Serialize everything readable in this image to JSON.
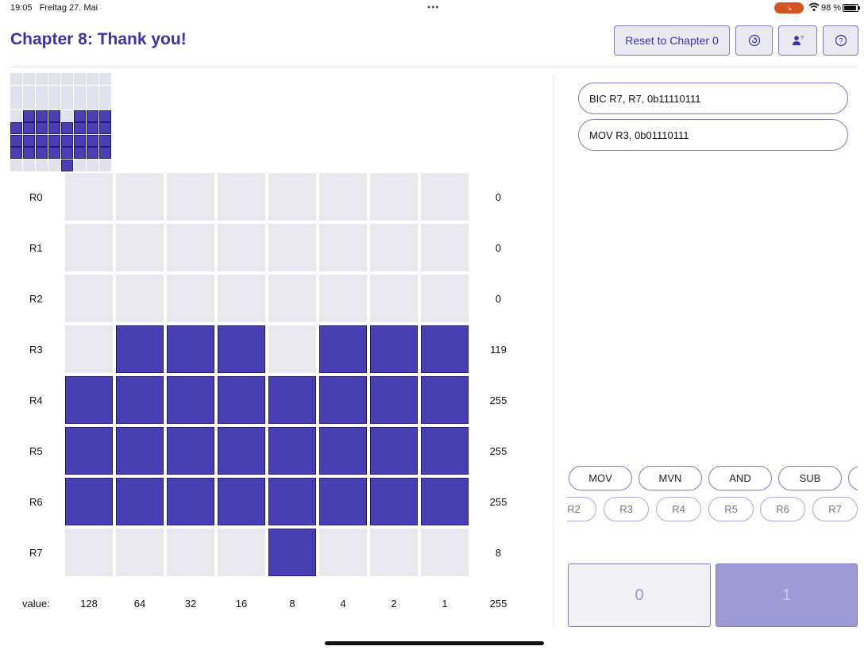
{
  "status_bar": {
    "time": "19:05",
    "date": "Freitag 27. Mai",
    "dots": "•••",
    "battery": "98 %",
    "swift_badge": "swift-icon"
  },
  "header": {
    "title": "Chapter 8: Thank you!",
    "reset_label": "Reset to Chapter 0",
    "icons": [
      "restart-icon",
      "person-question-icon",
      "help-icon"
    ]
  },
  "preview": {
    "rows": [
      0,
      0,
      0,
      119,
      255,
      255,
      255,
      8
    ],
    "colors": {
      "on": "#4840b2",
      "off": "#e2e2ee"
    }
  },
  "registers": {
    "labels": [
      "R0",
      "R1",
      "R2",
      "R3",
      "R4",
      "R5",
      "R6",
      "R7"
    ],
    "values": [
      "0",
      "0",
      "0",
      "119",
      "255",
      "255",
      "255",
      "8"
    ],
    "bits": [
      0,
      0,
      0,
      119,
      255,
      255,
      255,
      8
    ]
  },
  "weights": {
    "label": "value:",
    "items": [
      "128",
      "64",
      "32",
      "16",
      "8",
      "4",
      "2",
      "1"
    ],
    "total": "255"
  },
  "instructions": [
    "BIC R7, R7, 0b11110111",
    "MOV R3, 0b01110111"
  ],
  "opcodes": [
    "MOV",
    "MVN",
    "AND",
    "SUB",
    ""
  ],
  "register_chips": [
    "R2",
    "R3",
    "R4",
    "R5",
    "R6",
    "R7"
  ],
  "bit_buttons": {
    "zero": "0",
    "one": "1"
  },
  "colors": {
    "accent": "#3b32b0",
    "cell_on": "#4840b2",
    "cell_off": "#e8e8ee",
    "swift": "#d4541d"
  }
}
